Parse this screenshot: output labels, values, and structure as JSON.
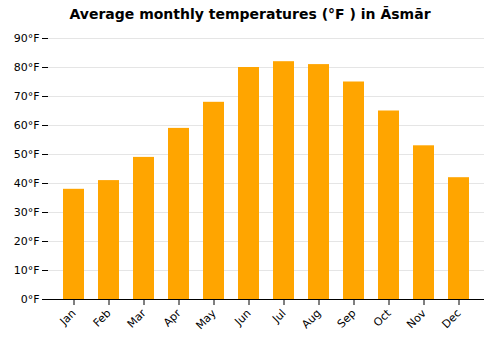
{
  "chart_data": {
    "type": "bar",
    "title": "Average monthly temperatures (°F ) in Āsmār",
    "categories": [
      "Jan",
      "Feb",
      "Mar",
      "Apr",
      "May",
      "Jun",
      "Jul",
      "Aug",
      "Sep",
      "Oct",
      "Nov",
      "Dec"
    ],
    "values": [
      38,
      41,
      49,
      59,
      68,
      80,
      82,
      81,
      75,
      65,
      53,
      42
    ],
    "color": "#FFA500",
    "ylim": [
      0,
      90
    ],
    "yticks": [
      {
        "value": 0,
        "label": "0°F"
      },
      {
        "value": 10,
        "label": "10°F"
      },
      {
        "value": 20,
        "label": "20°F"
      },
      {
        "value": 30,
        "label": "30°F"
      },
      {
        "value": 40,
        "label": "40°F"
      },
      {
        "value": 50,
        "label": "50°F"
      },
      {
        "value": 60,
        "label": "60°F"
      },
      {
        "value": 70,
        "label": "70°F"
      },
      {
        "value": 80,
        "label": "80°F"
      },
      {
        "value": 90,
        "label": "90°F"
      }
    ],
    "grid": true
  }
}
